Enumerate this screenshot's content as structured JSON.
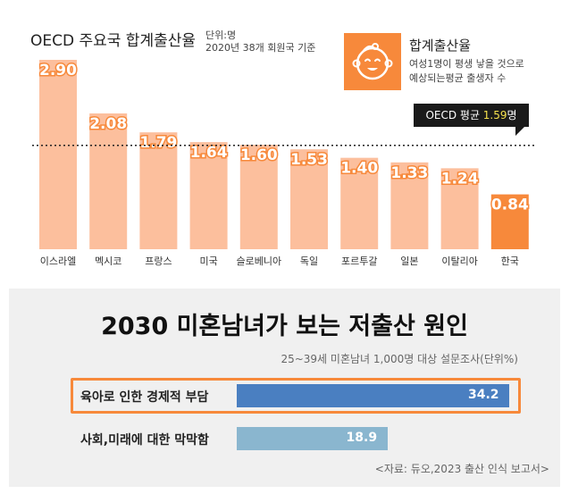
{
  "top_chart": {
    "title": "OECD 주요국 합계출산율",
    "unit": "단위:명",
    "basis": "2020년 38개 회원국 기준",
    "legend_title": "합계출산율",
    "legend_desc_1": "여성1명이 평생 낳을 것으로",
    "legend_desc_2": "예상되는평균 출생자 수",
    "avg_label_prefix": "OECD 평균 ",
    "avg_label_value": "1.59",
    "avg_label_suffix": "명",
    "icon": "baby-face-icon",
    "colors": {
      "bar": "#fcbf9d",
      "highlight_bar": "#f7893b",
      "label_text": "#ffffff",
      "label_stroke": "#f7893b"
    }
  },
  "bottom_chart": {
    "title": "2030 미혼남녀가 보는 저출산 원인",
    "subtitle": "25~39세 미혼남녀 1,000명 대상 설문조사(단위%)",
    "source": "<자료: 듀오,2023 출산 인식 보고서>",
    "colors": {
      "bar1": "#4a7fc1",
      "bar2": "#8ab6cf",
      "highlight_border": "#f7893b",
      "panel": "#f0f0f0"
    }
  },
  "chart_data": [
    {
      "type": "bar",
      "title": "OECD 주요국 합계출산율",
      "categories": [
        "이스라엘",
        "멕시코",
        "프랑스",
        "미국",
        "슬로베니아",
        "독일",
        "포르투갈",
        "일본",
        "이탈리아",
        "한국"
      ],
      "values": [
        2.9,
        2.08,
        1.79,
        1.64,
        1.6,
        1.53,
        1.4,
        1.33,
        1.24,
        0.84
      ],
      "value_labels": [
        "2.90",
        "2.08",
        "1.79",
        "1.64",
        "1.60",
        "1.53",
        "1.40",
        "1.33",
        "1.24",
        "0.84"
      ],
      "reference_line": {
        "value": 1.59
      },
      "highlight_category": "한국",
      "ylim": [
        0,
        3.1
      ],
      "grid": false
    },
    {
      "type": "bar",
      "orientation": "horizontal",
      "title": "2030 미혼남녀가 보는 저출산 원인",
      "categories": [
        "육아로 인한 경제적 부담",
        "사회,미래에 대한 막막함"
      ],
      "values": [
        34.2,
        18.9
      ],
      "value_labels": [
        "34.2",
        "18.9"
      ],
      "xlim": [
        0,
        36
      ]
    }
  ]
}
